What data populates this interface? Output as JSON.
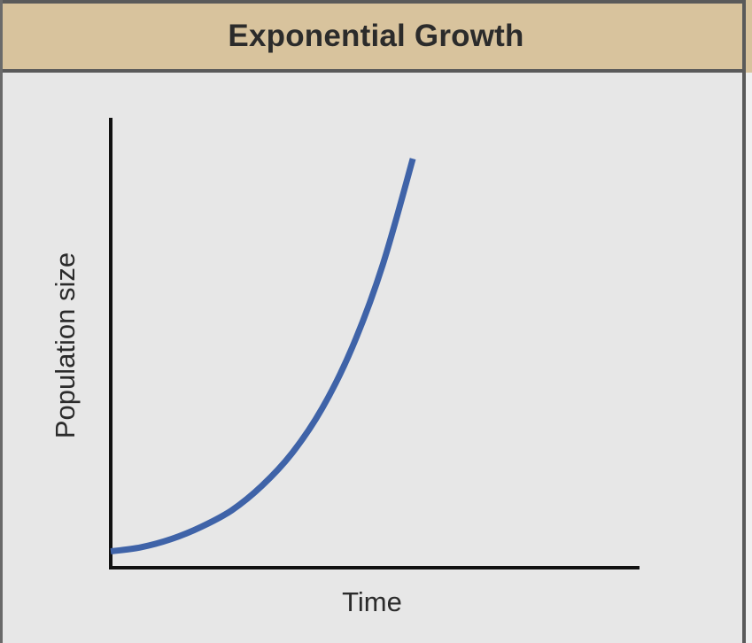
{
  "chart_data": {
    "type": "line",
    "title": "Exponential Growth",
    "xlabel": "Time",
    "ylabel": "Population size",
    "grid": false,
    "legend": "none",
    "colors": {
      "curve": "#3f63a8",
      "axis": "#111111",
      "header": "#d8c39d",
      "background": "#e7e7e7"
    },
    "series": [
      {
        "x": [
          0,
          0.1,
          0.2,
          0.3,
          0.4,
          0.5,
          0.6,
          0.7,
          0.8,
          0.9,
          1.0
        ],
        "y": [
          0.04,
          0.05,
          0.07,
          0.1,
          0.14,
          0.2,
          0.28,
          0.39,
          0.54,
          0.74,
          1.0
        ]
      }
    ],
    "xlim": [
      0,
      1.75
    ],
    "ylim": [
      0,
      1.1
    ]
  }
}
